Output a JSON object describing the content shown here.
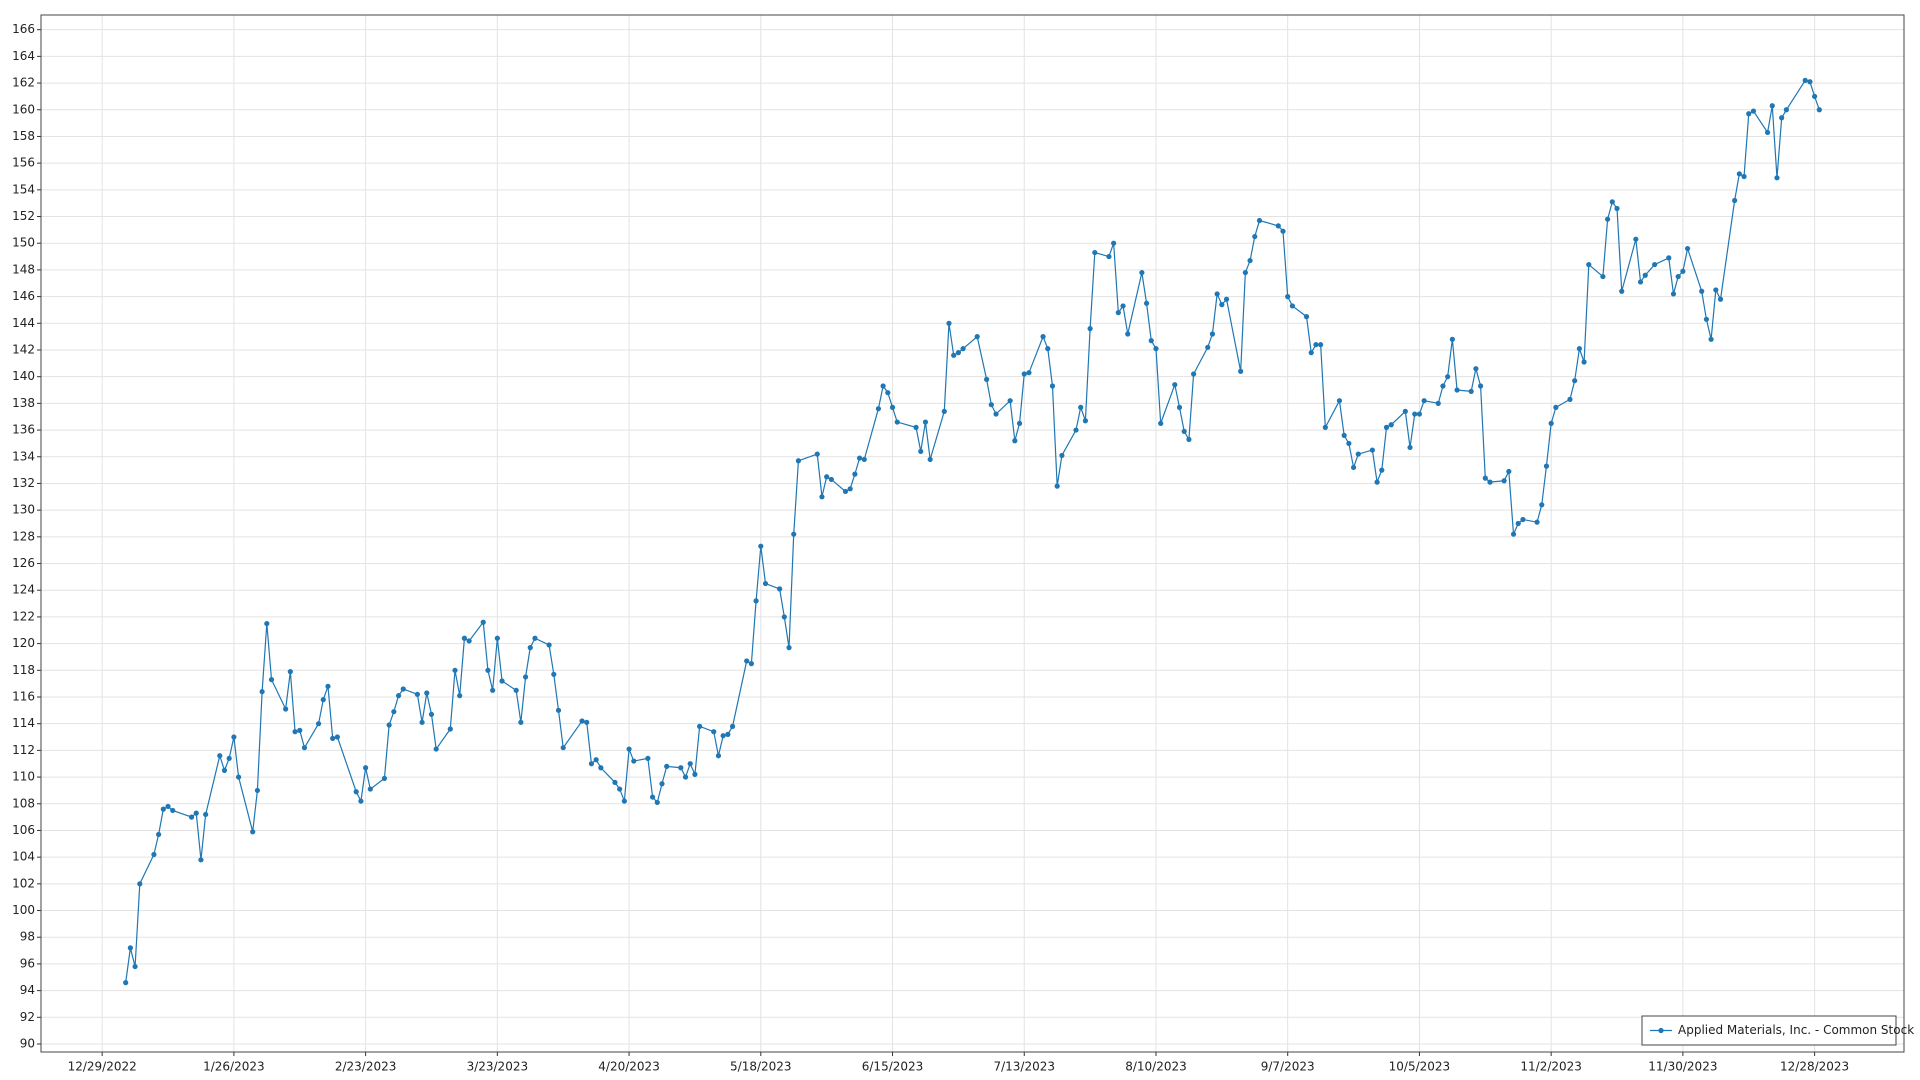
{
  "chart_data": {
    "type": "line",
    "grid": true,
    "legend": "lower right",
    "xlim": [
      "12/16/2022",
      "1/16/2024"
    ],
    "xticks": [
      "12/29/2022",
      "1/26/2023",
      "2/23/2023",
      "3/23/2023",
      "4/20/2023",
      "5/18/2023",
      "6/15/2023",
      "7/13/2023",
      "8/10/2023",
      "9/7/2023",
      "10/5/2023",
      "11/2/2023",
      "11/30/2023",
      "12/28/2023"
    ],
    "ylim": [
      89.4,
      167.1
    ],
    "yticks": [
      90,
      92,
      94,
      96,
      98,
      100,
      102,
      104,
      106,
      108,
      110,
      112,
      114,
      116,
      118,
      120,
      122,
      124,
      126,
      128,
      130,
      132,
      134,
      136,
      138,
      140,
      142,
      144,
      146,
      148,
      150,
      152,
      154,
      156,
      158,
      160,
      162,
      164,
      166
    ],
    "x": [
      "1/3/2023",
      "1/4/2023",
      "1/5/2023",
      "1/6/2023",
      "1/9/2023",
      "1/10/2023",
      "1/11/2023",
      "1/12/2023",
      "1/13/2023",
      "1/17/2023",
      "1/18/2023",
      "1/19/2023",
      "1/20/2023",
      "1/23/2023",
      "1/24/2023",
      "1/25/2023",
      "1/26/2023",
      "1/27/2023",
      "1/30/2023",
      "1/31/2023",
      "2/1/2023",
      "2/2/2023",
      "2/3/2023",
      "2/6/2023",
      "2/7/2023",
      "2/8/2023",
      "2/9/2023",
      "2/10/2023",
      "2/13/2023",
      "2/14/2023",
      "2/15/2023",
      "2/16/2023",
      "2/17/2023",
      "2/21/2023",
      "2/22/2023",
      "2/23/2023",
      "2/24/2023",
      "2/27/2023",
      "2/28/2023",
      "3/1/2023",
      "3/2/2023",
      "3/3/2023",
      "3/6/2023",
      "3/7/2023",
      "3/8/2023",
      "3/9/2023",
      "3/10/2023",
      "3/13/2023",
      "3/14/2023",
      "3/15/2023",
      "3/16/2023",
      "3/17/2023",
      "3/20/2023",
      "3/21/2023",
      "3/22/2023",
      "3/23/2023",
      "3/24/2023",
      "3/27/2023",
      "3/28/2023",
      "3/29/2023",
      "3/30/2023",
      "3/31/2023",
      "4/3/2023",
      "4/4/2023",
      "4/5/2023",
      "4/6/2023",
      "4/10/2023",
      "4/11/2023",
      "4/12/2023",
      "4/13/2023",
      "4/14/2023",
      "4/17/2023",
      "4/18/2023",
      "4/19/2023",
      "4/20/2023",
      "4/21/2023",
      "4/24/2023",
      "4/25/2023",
      "4/26/2023",
      "4/27/2023",
      "4/28/2023",
      "5/1/2023",
      "5/2/2023",
      "5/3/2023",
      "5/4/2023",
      "5/5/2023",
      "5/8/2023",
      "5/9/2023",
      "5/10/2023",
      "5/11/2023",
      "5/12/2023",
      "5/15/2023",
      "5/16/2023",
      "5/17/2023",
      "5/18/2023",
      "5/19/2023",
      "5/22/2023",
      "5/23/2023",
      "5/24/2023",
      "5/25/2023",
      "5/26/2023",
      "5/30/2023",
      "5/31/2023",
      "6/1/2023",
      "6/2/2023",
      "6/5/2023",
      "6/6/2023",
      "6/7/2023",
      "6/8/2023",
      "6/9/2023",
      "6/12/2023",
      "6/13/2023",
      "6/14/2023",
      "6/15/2023",
      "6/16/2023",
      "6/20/2023",
      "6/21/2023",
      "6/22/2023",
      "6/23/2023",
      "6/26/2023",
      "6/27/2023",
      "6/28/2023",
      "6/29/2023",
      "6/30/2023",
      "7/3/2023",
      "7/5/2023",
      "7/6/2023",
      "7/7/2023",
      "7/10/2023",
      "7/11/2023",
      "7/12/2023",
      "7/13/2023",
      "7/14/2023",
      "7/17/2023",
      "7/18/2023",
      "7/19/2023",
      "7/20/2023",
      "7/21/2023",
      "7/24/2023",
      "7/25/2023",
      "7/26/2023",
      "7/27/2023",
      "7/28/2023",
      "7/31/2023",
      "8/1/2023",
      "8/2/2023",
      "8/3/2023",
      "8/4/2023",
      "8/7/2023",
      "8/8/2023",
      "8/9/2023",
      "8/10/2023",
      "8/11/2023",
      "8/14/2023",
      "8/15/2023",
      "8/16/2023",
      "8/17/2023",
      "8/18/2023",
      "8/21/2023",
      "8/22/2023",
      "8/23/2023",
      "8/24/2023",
      "8/25/2023",
      "8/28/2023",
      "8/29/2023",
      "8/30/2023",
      "8/31/2023",
      "9/1/2023",
      "9/5/2023",
      "9/6/2023",
      "9/7/2023",
      "9/8/2023",
      "9/11/2023",
      "9/12/2023",
      "9/13/2023",
      "9/14/2023",
      "9/15/2023",
      "9/18/2023",
      "9/19/2023",
      "9/20/2023",
      "9/21/2023",
      "9/22/2023",
      "9/25/2023",
      "9/26/2023",
      "9/27/2023",
      "9/28/2023",
      "9/29/2023",
      "10/2/2023",
      "10/3/2023",
      "10/4/2023",
      "10/5/2023",
      "10/6/2023",
      "10/9/2023",
      "10/10/2023",
      "10/11/2023",
      "10/12/2023",
      "10/13/2023",
      "10/16/2023",
      "10/17/2023",
      "10/18/2023",
      "10/19/2023",
      "10/20/2023",
      "10/23/2023",
      "10/24/2023",
      "10/25/2023",
      "10/26/2023",
      "10/27/2023",
      "10/30/2023",
      "10/31/2023",
      "11/1/2023",
      "11/2/2023",
      "11/3/2023",
      "11/6/2023",
      "11/7/2023",
      "11/8/2023",
      "11/9/2023",
      "11/10/2023",
      "11/13/2023",
      "11/14/2023",
      "11/15/2023",
      "11/16/2023",
      "11/17/2023",
      "11/20/2023",
      "11/21/2023",
      "11/22/2023",
      "11/24/2023",
      "11/27/2023",
      "11/28/2023",
      "11/29/2023",
      "11/30/2023",
      "12/1/2023",
      "12/4/2023",
      "12/5/2023",
      "12/6/2023",
      "12/7/2023",
      "12/8/2023",
      "12/11/2023",
      "12/12/2023",
      "12/13/2023",
      "12/14/2023",
      "12/15/2023",
      "12/18/2023",
      "12/19/2023",
      "12/20/2023",
      "12/21/2023",
      "12/22/2023",
      "12/26/2023",
      "12/27/2023",
      "12/28/2023",
      "12/29/2023"
    ],
    "series": [
      {
        "name": "Applied Materials, Inc. - Common Stock",
        "color": "#1f77b4",
        "values": [
          94.6,
          97.2,
          95.8,
          102,
          104.2,
          105.7,
          107.6,
          107.8,
          107.5,
          107.0,
          107.3,
          103.8,
          107.2,
          111.6,
          110.5,
          111.4,
          113.0,
          110.0,
          105.9,
          109.0,
          116.4,
          121.5,
          117.3,
          115.1,
          117.9,
          113.4,
          113.5,
          112.2,
          114.0,
          115.8,
          116.8,
          112.9,
          113.0,
          108.9,
          108.2,
          110.7,
          109.1,
          109.9,
          113.9,
          114.9,
          116.1,
          116.6,
          116.2,
          114.1,
          116.3,
          114.7,
          112.1,
          113.6,
          118.0,
          116.1,
          120.4,
          120.2,
          121.6,
          118.0,
          116.5,
          120.4,
          117.2,
          116.5,
          114.1,
          117.5,
          119.7,
          120.4,
          119.9,
          117.7,
          115.0,
          112.2,
          114.2,
          114.1,
          111.0,
          111.3,
          110.7,
          109.6,
          109.1,
          108.2,
          112.1,
          111.2,
          111.4,
          108.5,
          108.1,
          109.5,
          110.8,
          110.7,
          110.0,
          111.0,
          110.2,
          113.8,
          113.4,
          111.6,
          113.1,
          113.2,
          113.8,
          118.7,
          118.5,
          123.2,
          127.3,
          124.5,
          124.1,
          122.0,
          119.7,
          128.2,
          133.7,
          134.2,
          131.0,
          132.5,
          132.3,
          131.4,
          131.6,
          132.7,
          133.9,
          133.8,
          137.6,
          139.3,
          138.8,
          137.7,
          136.6,
          136.2,
          134.4,
          136.6,
          133.8,
          137.4,
          144.0,
          141.6,
          141.8,
          142.1,
          143.0,
          139.8,
          137.9,
          137.2,
          138.2,
          135.2,
          136.5,
          140.2,
          140.3,
          143.0,
          142.1,
          139.3,
          131.8,
          134.1,
          136.0,
          137.7,
          136.7,
          143.6,
          149.3,
          149.0,
          150.0,
          144.8,
          145.3,
          143.2,
          147.8,
          145.5,
          142.7,
          142.1,
          136.5,
          139.4,
          137.7,
          135.9,
          135.3,
          140.2,
          142.2,
          143.2,
          146.2,
          145.4,
          145.8,
          140.4,
          147.8,
          148.7,
          150.5,
          151.7,
          151.3,
          150.9,
          146.0,
          145.3,
          144.5,
          141.8,
          142.4,
          142.4,
          136.2,
          138.2,
          135.6,
          135.0,
          133.2,
          134.2,
          134.5,
          132.1,
          133.0,
          136.2,
          136.4,
          137.4,
          134.7,
          137.2,
          137.2,
          138.2,
          138.0,
          139.3,
          140.0,
          142.8,
          139.0,
          138.9,
          140.6,
          139.3,
          132.4,
          132.1,
          132.2,
          132.9,
          128.2,
          129.0,
          129.3,
          129.1,
          130.4,
          133.3,
          136.5,
          137.7,
          138.3,
          139.7,
          142.1,
          141.1,
          148.4,
          147.5,
          151.8,
          153.1,
          152.6,
          146.4,
          150.3,
          147.1,
          147.6,
          148.4,
          148.9,
          146.2,
          147.5,
          147.9,
          149.6,
          146.4,
          144.3,
          142.8,
          146.5,
          145.8,
          153.2,
          155.2,
          155.0,
          159.7,
          159.9,
          158.3,
          160.3,
          154.9,
          159.4,
          160.0,
          162.2,
          162.1,
          161.0,
          160.0
        ]
      }
    ]
  }
}
